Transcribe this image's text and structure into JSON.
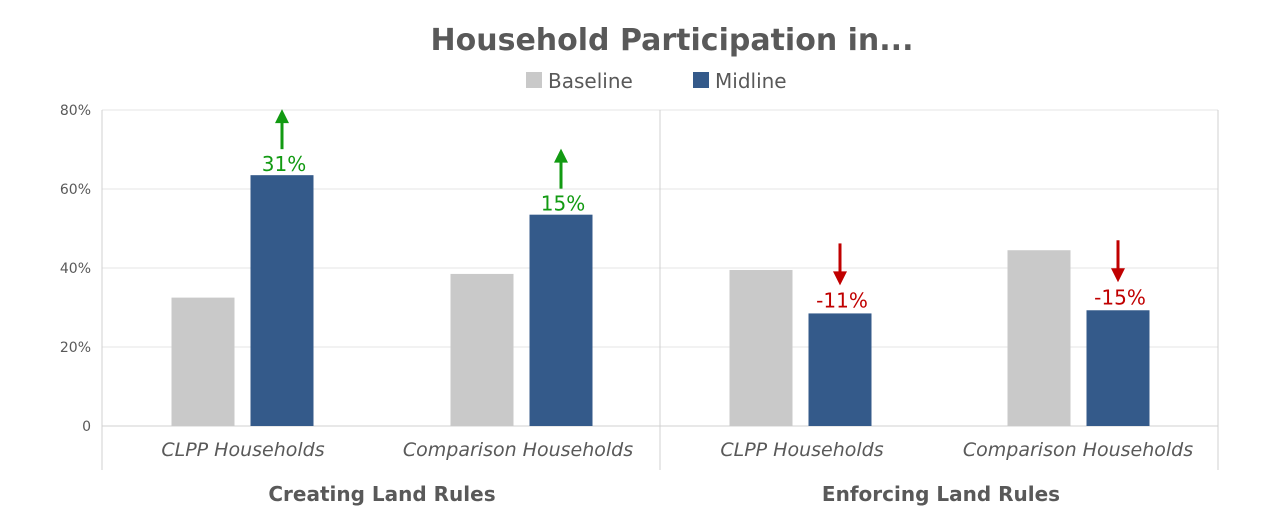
{
  "chart_data": {
    "type": "bar",
    "title": "Household Participation in...",
    "legend": {
      "placement": "top-center",
      "entries": [
        "Baseline",
        "Midline"
      ]
    },
    "y_ticks": [
      "0",
      "20%",
      "40%",
      "60%",
      "80%"
    ],
    "ylim": [
      0,
      80
    ],
    "grid": true,
    "groups": [
      {
        "label": "Creating Land Rules",
        "categories": [
          {
            "label": "CLPP Households",
            "baseline": 32.5,
            "midline": 63.5,
            "change": "31%",
            "direction": "up"
          },
          {
            "label": "Comparison Households",
            "baseline": 38.5,
            "midline": 53.5,
            "change": "15%",
            "direction": "up"
          }
        ]
      },
      {
        "label": "Enforcing Land Rules",
        "categories": [
          {
            "label": "CLPP Households",
            "baseline": 39.5,
            "midline": 28.5,
            "change": "-11%",
            "direction": "down"
          },
          {
            "label": "Comparison Households",
            "baseline": 44.5,
            "midline": 29.3,
            "change": "-15%",
            "direction": "down"
          }
        ]
      }
    ],
    "colors": {
      "baseline": "#c9c9c9",
      "midline": "#345a8a",
      "increase": "#129a12",
      "decrease": "#c00000",
      "grid": "#e6e6e6",
      "axis": "#d0d0d0"
    }
  }
}
